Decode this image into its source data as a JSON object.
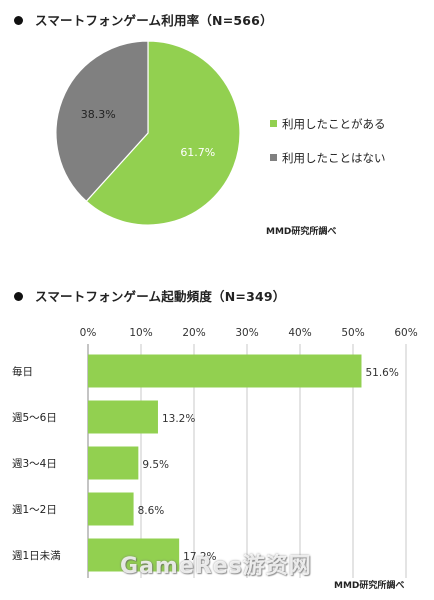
{
  "chart_data": [
    {
      "type": "pie",
      "title": "スマートフォンゲーム利用率（N=566）",
      "slices": [
        {
          "name": "利用したことがある",
          "value": 61.7,
          "label": "61.7%",
          "color": "#92d050"
        },
        {
          "name": "利用したことはない",
          "value": 38.3,
          "label": "38.3%",
          "color": "#808080"
        }
      ],
      "legend_position": "right",
      "source": "MMD研究所調べ"
    },
    {
      "type": "bar",
      "orientation": "horizontal",
      "title": "スマートフォンゲーム起動頻度（N=349）",
      "categories": [
        "毎日",
        "週5～6日",
        "週3～4日",
        "週1～2日",
        "週1日未満"
      ],
      "values": [
        51.6,
        13.2,
        9.5,
        8.6,
        17.2
      ],
      "value_labels": [
        "51.6%",
        "13.2%",
        "9.5%",
        "8.6%",
        "17.2%"
      ],
      "xlim": [
        0,
        60
      ],
      "x_ticks": [
        "0%",
        "10%",
        "20%",
        "30%",
        "40%",
        "50%",
        "60%"
      ],
      "grid": true,
      "bar_color": "#92d050",
      "source": "MMD研究所調べ"
    }
  ],
  "watermark": "GameRes游资网"
}
